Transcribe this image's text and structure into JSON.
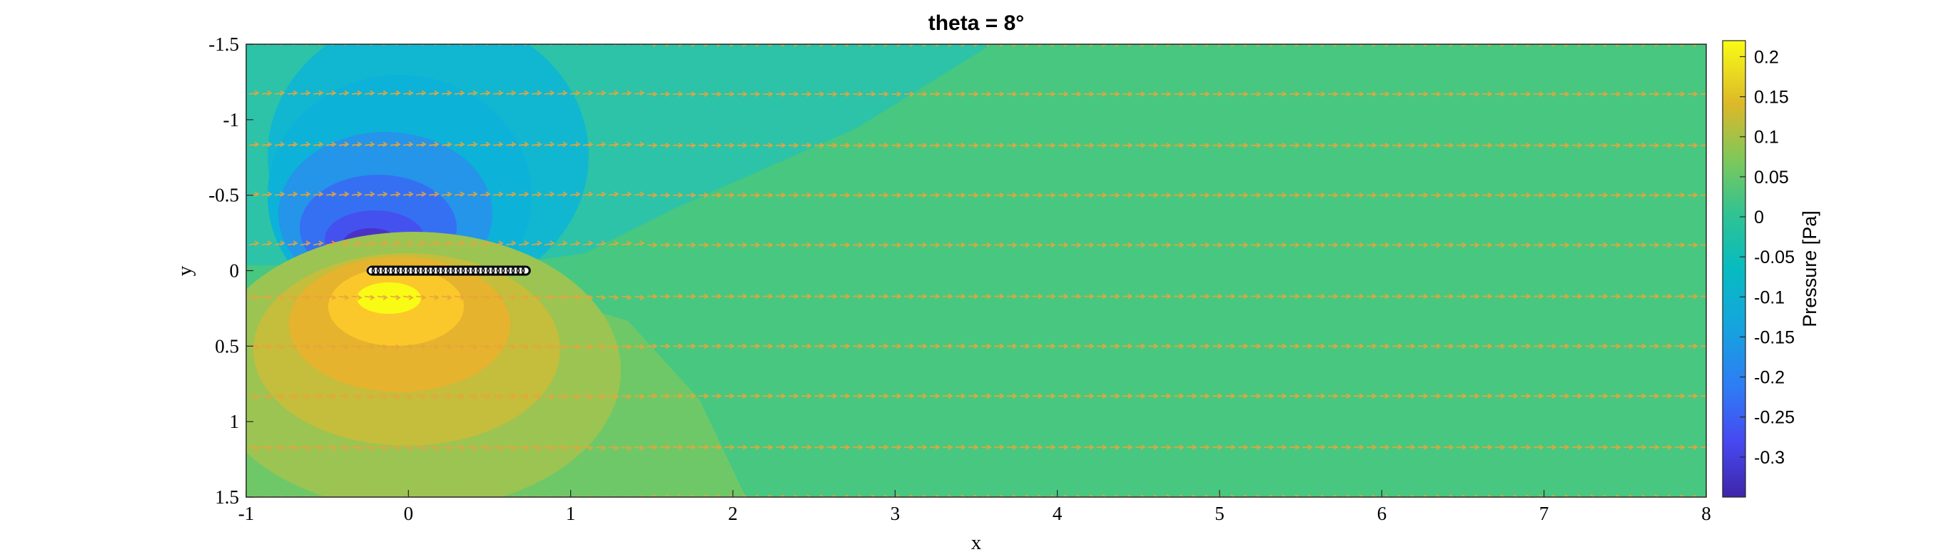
{
  "chart_data": {
    "type": "contour",
    "title": "theta = 8°",
    "xlabel": "x",
    "ylabel": "y",
    "xlim": [
      -1,
      8
    ],
    "ylim": [
      -1.5,
      1.5
    ],
    "y_direction": "reversed",
    "x_ticks": [
      -1,
      0,
      1,
      2,
      3,
      4,
      5,
      6,
      7,
      8
    ],
    "y_ticks": [
      -1.5,
      -1,
      -0.5,
      0,
      0.5,
      1,
      1.5
    ],
    "colorbar": {
      "label": "Pressure [Pa]",
      "colormap": "parula",
      "range": [
        -0.35,
        0.22
      ],
      "ticks": [
        -0.3,
        -0.25,
        -0.2,
        -0.15,
        -0.1,
        -0.05,
        0,
        0.05,
        0.1,
        0.15,
        0.2
      ]
    },
    "plate": {
      "x_start": -0.25,
      "x_end": 0.75,
      "y": 0
    },
    "streamline_rows_y": [
      -1.5,
      -1.17,
      -0.83,
      -0.5,
      -0.17,
      0.17,
      0.5,
      0.83,
      1.17,
      1.5
    ],
    "colors": {
      "streamline": "#e8a43a",
      "plate": "#000000"
    }
  }
}
